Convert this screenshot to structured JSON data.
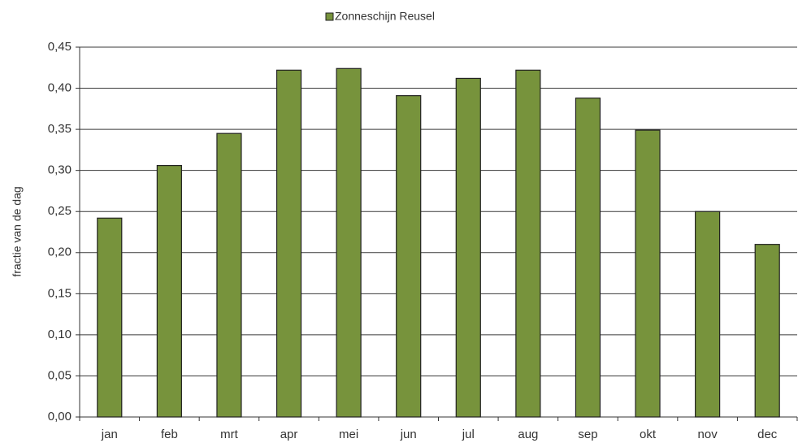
{
  "chart_data": {
    "type": "bar",
    "y_label": "fractie van de dag",
    "categories": [
      "jan",
      "feb",
      "mrt",
      "apr",
      "mei",
      "jun",
      "jul",
      "aug",
      "sep",
      "okt",
      "nov",
      "dec"
    ],
    "series": [
      {
        "name": "Zonneschijn Reusel",
        "color": "#77933c",
        "values": [
          0.242,
          0.306,
          0.345,
          0.422,
          0.424,
          0.391,
          0.412,
          0.422,
          0.388,
          0.349,
          0.25,
          0.21
        ]
      }
    ],
    "ylim": [
      0,
      0.45
    ],
    "yticks": [
      {
        "value": 0,
        "label": "0,00"
      },
      {
        "value": 0.05,
        "label": "0,05"
      },
      {
        "value": 0.1,
        "label": "0,10"
      },
      {
        "value": 0.15,
        "label": "0,15"
      },
      {
        "value": 0.2,
        "label": "0,20"
      },
      {
        "value": 0.25,
        "label": "0,25"
      },
      {
        "value": 0.3,
        "label": "0,30"
      },
      {
        "value": 0.35,
        "label": "0,35"
      },
      {
        "value": 0.4,
        "label": "0,40"
      },
      {
        "value": 0.45,
        "label": "0,45"
      }
    ],
    "grid": true,
    "legend": "top"
  }
}
